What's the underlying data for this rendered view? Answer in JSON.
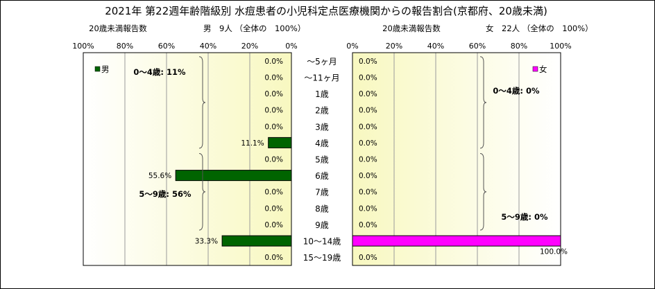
{
  "chart_data": {
    "type": "bar",
    "title": "2021年 第22週年齢階級別 水痘患者の小児科定点医療機関からの報告割合(京都府、20歳未満)",
    "categories": [
      "～5ヶ月",
      "～11ヶ月",
      "1歳",
      "2歳",
      "3歳",
      "4歳",
      "5歳",
      "6歳",
      "7歳",
      "8歳",
      "9歳",
      "10～14歳",
      "15～19歳"
    ],
    "axis_ticks": [
      "0%",
      "20%",
      "40%",
      "60%",
      "80%",
      "100%"
    ],
    "xlim": [
      0,
      100
    ],
    "grid": true,
    "background": "#f8f8c0",
    "panels": [
      {
        "side": "left",
        "header_left": "20歳未満報告数",
        "header_right": "男　9人 （全体の　100%）",
        "legend": "男",
        "legend_position": "top-left",
        "color": "#006400",
        "values": [
          0.0,
          0.0,
          0.0,
          0.0,
          0.0,
          11.1,
          0.0,
          55.6,
          0.0,
          0.0,
          0.0,
          33.3,
          0.0
        ],
        "value_labels": [
          "0.0%",
          "0.0%",
          "0.0%",
          "0.0%",
          "0.0%",
          "11.1%",
          "0.0%",
          "55.6%",
          "0.0%",
          "0.0%",
          "0.0%",
          "33.3%",
          "0.0%"
        ],
        "annotations": [
          "0～4歳: 11%",
          "5～9歳: 56%"
        ]
      },
      {
        "side": "right",
        "header_left": "20歳未満報告数",
        "header_right": "女　22人 （全体の　100%）",
        "legend": "女",
        "legend_position": "top-right",
        "color": "#ff00ff",
        "values": [
          0.0,
          0.0,
          0.0,
          0.0,
          0.0,
          0.0,
          0.0,
          0.0,
          0.0,
          0.0,
          0.0,
          100.0,
          0.0
        ],
        "value_labels": [
          "0.0%",
          "0.0%",
          "0.0%",
          "0.0%",
          "0.0%",
          "0.0%",
          "0.0%",
          "0.0%",
          "0.0%",
          "0.0%",
          "0.0%",
          "100.0%",
          "0.0%"
        ],
        "annotations": [
          "0～4歳: 0%",
          "5～9歳: 0%"
        ]
      }
    ]
  }
}
